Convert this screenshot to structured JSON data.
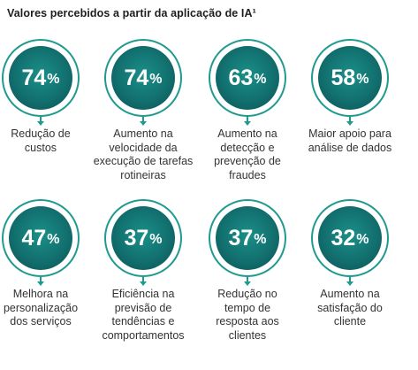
{
  "title": "Valores percebidos a partir da aplicação de IA¹",
  "chart_data": {
    "type": "table",
    "title": "Valores percebidos a partir da aplicação de IA¹",
    "unit": "%",
    "items": [
      {
        "value": 74,
        "label": "Redução de custos"
      },
      {
        "value": 74,
        "label": "Aumento na velocidade da execução de tarefas rotineiras"
      },
      {
        "value": 63,
        "label": "Aumento na detecção e prevenção de fraudes"
      },
      {
        "value": 58,
        "label": "Maior apoio para análise de dados"
      },
      {
        "value": 47,
        "label": "Melhora na personalização dos serviços"
      },
      {
        "value": 37,
        "label": "Eficiência na previsão de tendências e comportamentos"
      },
      {
        "value": 37,
        "label": "Redução no tempo de resposta aos clientes"
      },
      {
        "value": 32,
        "label": "Aumento na satisfação do cliente"
      }
    ]
  },
  "colors": {
    "ring": "#1f9a8f",
    "disc": "#12706f",
    "text": "#333333"
  }
}
